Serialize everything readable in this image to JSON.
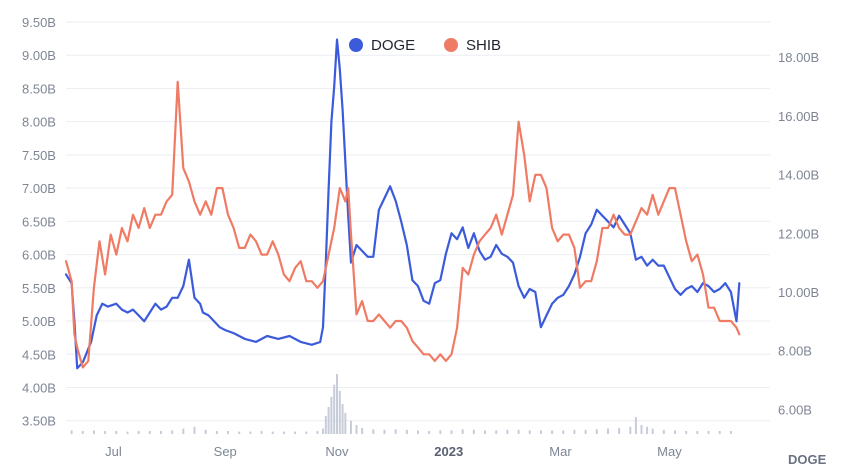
{
  "chart_data": {
    "type": "line",
    "title": "",
    "xlabel": "",
    "ylabel_left": "",
    "ylabel_right": "DOGE",
    "grid": true,
    "legend_position": "top-center",
    "left_axis": {
      "ylim": [
        3.3,
        9.5
      ],
      "ticks": [
        "3.50B",
        "4.00B",
        "4.50B",
        "5.00B",
        "5.50B",
        "6.00B",
        "6.50B",
        "7.00B",
        "7.50B",
        "8.00B",
        "8.50B",
        "9.00B",
        "9.50B"
      ],
      "tick_values": [
        3.5,
        4.0,
        4.5,
        5.0,
        5.5,
        6.0,
        6.5,
        7.0,
        7.5,
        8.0,
        8.5,
        9.0,
        9.5
      ]
    },
    "right_axis": {
      "ylim": [
        5.16,
        19.2
      ],
      "ticks": [
        "6.00B",
        "8.00B",
        "10.00B",
        "12.00B",
        "14.00B",
        "16.00B",
        "18.00B"
      ],
      "tick_values": [
        6,
        8,
        10,
        12,
        14,
        16,
        18
      ]
    },
    "x_axis": {
      "domain": [
        0,
        12.6
      ],
      "ticks": [
        {
          "label": "Jul",
          "at": 0.85,
          "bold": false
        },
        {
          "label": "Sep",
          "at": 2.85,
          "bold": false
        },
        {
          "label": "Nov",
          "at": 4.85,
          "bold": false
        },
        {
          "label": "2023",
          "at": 6.85,
          "bold": true
        },
        {
          "label": "Mar",
          "at": 8.85,
          "bold": false
        },
        {
          "label": "May",
          "at": 10.8,
          "bold": false
        }
      ]
    },
    "series": [
      {
        "name": "DOGE",
        "axis": "right",
        "color": "#3b5bdb",
        "x": [
          0,
          0.1,
          0.15,
          0.2,
          0.3,
          0.45,
          0.55,
          0.65,
          0.75,
          0.9,
          1.0,
          1.1,
          1.2,
          1.3,
          1.4,
          1.5,
          1.6,
          1.7,
          1.8,
          1.9,
          2.0,
          2.1,
          2.2,
          2.3,
          2.4,
          2.45,
          2.55,
          2.65,
          2.75,
          2.85,
          3.0,
          3.2,
          3.4,
          3.6,
          3.8,
          4.0,
          4.2,
          4.4,
          4.55,
          4.6,
          4.65,
          4.7,
          4.75,
          4.8,
          4.85,
          4.9,
          4.95,
          5.0,
          5.05,
          5.1,
          5.2,
          5.3,
          5.4,
          5.5,
          5.6,
          5.7,
          5.8,
          5.9,
          6.0,
          6.1,
          6.2,
          6.3,
          6.4,
          6.5,
          6.6,
          6.7,
          6.8,
          6.9,
          7.0,
          7.1,
          7.2,
          7.3,
          7.4,
          7.5,
          7.6,
          7.7,
          7.8,
          7.9,
          8.0,
          8.1,
          8.2,
          8.3,
          8.4,
          8.5,
          8.6,
          8.7,
          8.8,
          8.9,
          9.0,
          9.1,
          9.2,
          9.3,
          9.4,
          9.5,
          9.6,
          9.7,
          9.8,
          9.9,
          10.0,
          10.1,
          10.2,
          10.3,
          10.4,
          10.5,
          10.6,
          10.7,
          10.8,
          10.9,
          11.0,
          11.1,
          11.2,
          11.3,
          11.4,
          11.5,
          11.6,
          11.7,
          11.8,
          11.9,
          12.0,
          12.05
        ],
        "values": [
          10.6,
          10.3,
          9.0,
          7.4,
          7.6,
          8.3,
          9.2,
          9.6,
          9.5,
          9.6,
          9.4,
          9.3,
          9.4,
          9.2,
          9.0,
          9.3,
          9.6,
          9.4,
          9.5,
          9.8,
          9.8,
          10.2,
          11.1,
          9.8,
          9.6,
          9.3,
          9.2,
          9.0,
          8.8,
          8.7,
          8.6,
          8.4,
          8.3,
          8.5,
          8.4,
          8.5,
          8.3,
          8.2,
          8.3,
          8.8,
          11.0,
          13.5,
          15.8,
          17.0,
          18.6,
          17.6,
          16.2,
          14.4,
          12.6,
          11.0,
          11.6,
          11.4,
          11.2,
          11.2,
          12.8,
          13.2,
          13.6,
          13.1,
          12.4,
          11.6,
          10.4,
          10.2,
          9.7,
          9.6,
          10.3,
          10.4,
          11.3,
          12.0,
          11.8,
          12.2,
          11.5,
          12.0,
          11.4,
          11.1,
          11.2,
          11.6,
          11.3,
          11.2,
          11.0,
          10.2,
          9.8,
          10.1,
          10.0,
          8.8,
          9.2,
          9.6,
          9.8,
          9.9,
          10.2,
          10.6,
          11.2,
          12.0,
          12.3,
          12.8,
          12.6,
          12.4,
          12.2,
          12.6,
          12.3,
          12.0,
          11.1,
          11.2,
          10.9,
          11.1,
          10.9,
          10.9,
          10.5,
          10.1,
          9.9,
          10.1,
          10.2,
          10.0,
          10.3,
          10.2,
          10.0,
          10.1,
          10.3,
          10.0,
          9.0,
          10.3
        ]
      },
      {
        "name": "SHIB",
        "axis": "left",
        "color": "#f07b64",
        "x": [
          0,
          0.1,
          0.15,
          0.2,
          0.3,
          0.4,
          0.5,
          0.6,
          0.7,
          0.8,
          0.9,
          1.0,
          1.1,
          1.2,
          1.3,
          1.4,
          1.5,
          1.6,
          1.7,
          1.8,
          1.9,
          2.0,
          2.1,
          2.2,
          2.3,
          2.4,
          2.5,
          2.6,
          2.7,
          2.8,
          2.9,
          3.0,
          3.1,
          3.2,
          3.3,
          3.4,
          3.5,
          3.6,
          3.7,
          3.8,
          3.9,
          4.0,
          4.1,
          4.2,
          4.3,
          4.4,
          4.5,
          4.6,
          4.7,
          4.8,
          4.9,
          5.0,
          5.05,
          5.1,
          5.2,
          5.3,
          5.4,
          5.5,
          5.6,
          5.7,
          5.8,
          5.9,
          6.0,
          6.1,
          6.2,
          6.3,
          6.4,
          6.5,
          6.6,
          6.7,
          6.8,
          6.9,
          7.0,
          7.1,
          7.2,
          7.3,
          7.4,
          7.5,
          7.6,
          7.7,
          7.8,
          7.9,
          8.0,
          8.1,
          8.2,
          8.3,
          8.4,
          8.5,
          8.6,
          8.7,
          8.8,
          8.9,
          9.0,
          9.1,
          9.2,
          9.3,
          9.4,
          9.5,
          9.6,
          9.7,
          9.8,
          9.9,
          10.0,
          10.1,
          10.2,
          10.3,
          10.4,
          10.5,
          10.6,
          10.7,
          10.8,
          10.9,
          11.0,
          11.1,
          11.2,
          11.3,
          11.4,
          11.5,
          11.6,
          11.7,
          11.8,
          11.9,
          12.0,
          12.05
        ],
        "values": [
          5.9,
          5.6,
          4.8,
          4.6,
          4.3,
          4.4,
          5.5,
          6.2,
          5.7,
          6.3,
          6.0,
          6.4,
          6.2,
          6.6,
          6.4,
          6.7,
          6.4,
          6.6,
          6.6,
          6.8,
          6.9,
          8.6,
          7.3,
          7.1,
          6.8,
          6.6,
          6.8,
          6.6,
          7.0,
          7.0,
          6.6,
          6.4,
          6.1,
          6.1,
          6.3,
          6.2,
          6.0,
          6.0,
          6.2,
          6.0,
          5.7,
          5.6,
          5.8,
          5.9,
          5.6,
          5.6,
          5.5,
          5.6,
          6.0,
          6.4,
          7.0,
          6.8,
          7.0,
          6.3,
          5.1,
          5.3,
          5.0,
          5.0,
          5.1,
          5.0,
          4.9,
          5.0,
          5.0,
          4.9,
          4.7,
          4.6,
          4.5,
          4.5,
          4.4,
          4.5,
          4.4,
          4.5,
          4.9,
          5.8,
          5.7,
          6.0,
          6.2,
          6.3,
          6.4,
          6.6,
          6.3,
          6.6,
          6.9,
          8.0,
          7.5,
          6.8,
          7.2,
          7.2,
          7.0,
          6.4,
          6.2,
          6.3,
          6.3,
          6.1,
          5.5,
          5.6,
          5.6,
          5.9,
          6.4,
          6.4,
          6.6,
          6.4,
          6.3,
          6.3,
          6.5,
          6.7,
          6.6,
          6.9,
          6.6,
          6.8,
          7.0,
          7.0,
          6.6,
          6.2,
          5.9,
          6.0,
          5.7,
          5.2,
          5.2,
          5.0,
          5.0,
          5.0,
          4.9,
          4.8
        ]
      }
    ],
    "volume": {
      "color": "#c7ccd8",
      "x": [
        0.1,
        0.3,
        0.5,
        0.7,
        0.9,
        1.1,
        1.3,
        1.5,
        1.7,
        1.9,
        2.1,
        2.3,
        2.5,
        2.7,
        2.9,
        3.1,
        3.3,
        3.5,
        3.7,
        3.9,
        4.1,
        4.3,
        4.5,
        4.6,
        4.65,
        4.7,
        4.75,
        4.8,
        4.85,
        4.9,
        4.95,
        5.0,
        5.1,
        5.2,
        5.3,
        5.5,
        5.7,
        5.9,
        6.1,
        6.3,
        6.5,
        6.7,
        6.9,
        7.1,
        7.3,
        7.5,
        7.7,
        7.9,
        8.1,
        8.3,
        8.5,
        8.7,
        8.9,
        9.1,
        9.3,
        9.5,
        9.7,
        9.9,
        10.1,
        10.2,
        10.3,
        10.4,
        10.5,
        10.7,
        10.9,
        11.1,
        11.3,
        11.5,
        11.7,
        11.9
      ],
      "values": [
        0.06,
        0.05,
        0.06,
        0.05,
        0.05,
        0.04,
        0.05,
        0.05,
        0.05,
        0.06,
        0.09,
        0.12,
        0.07,
        0.05,
        0.05,
        0.04,
        0.04,
        0.05,
        0.04,
        0.04,
        0.04,
        0.04,
        0.05,
        0.09,
        0.3,
        0.45,
        0.62,
        0.82,
        1.0,
        0.72,
        0.5,
        0.35,
        0.22,
        0.15,
        0.1,
        0.08,
        0.07,
        0.08,
        0.07,
        0.06,
        0.05,
        0.06,
        0.06,
        0.08,
        0.07,
        0.06,
        0.06,
        0.07,
        0.07,
        0.06,
        0.06,
        0.06,
        0.06,
        0.07,
        0.07,
        0.08,
        0.09,
        0.1,
        0.12,
        0.28,
        0.15,
        0.12,
        0.09,
        0.07,
        0.06,
        0.05,
        0.05,
        0.05,
        0.05,
        0.05
      ]
    }
  },
  "legend": [
    {
      "name": "DOGE",
      "color": "#3b5bdb"
    },
    {
      "name": "SHIB",
      "color": "#f07b64"
    }
  ]
}
